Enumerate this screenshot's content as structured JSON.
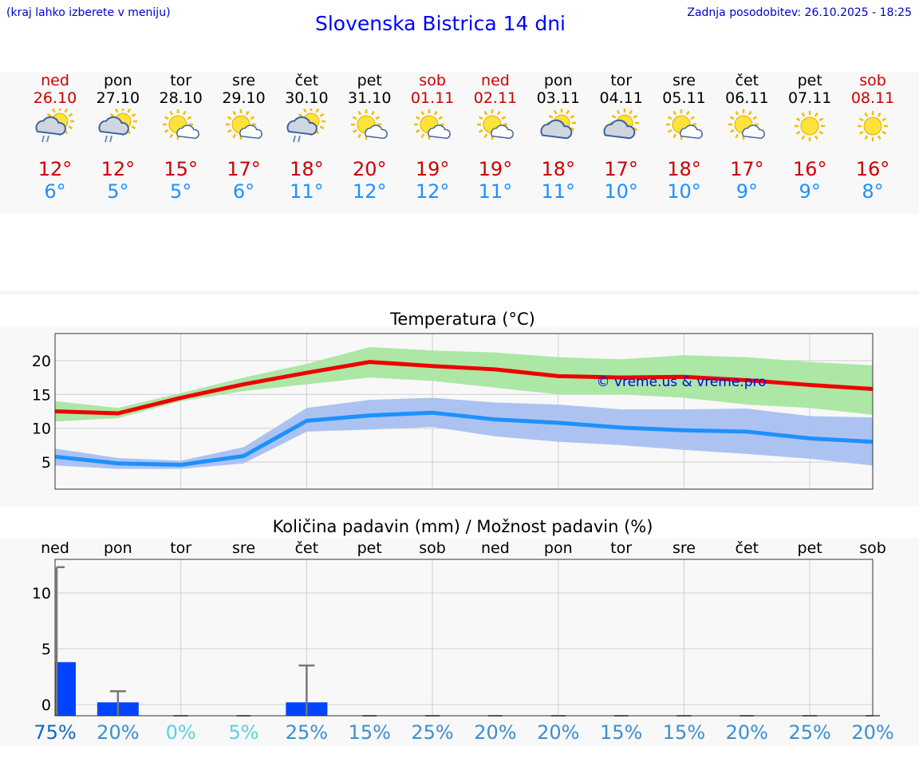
{
  "header": {
    "menu_hint": "(kraj lahko izberete v meniju)",
    "title": "Slovenska Bistrica 14 dni",
    "last_update": "Zadnja posodobitev: 26.10.2025 - 18:25"
  },
  "days": [
    {
      "name": "ned",
      "date": "26.10",
      "weekend": true,
      "icon": "partly-sunny-rain-icon",
      "tmax": "12°",
      "tmin": "6°"
    },
    {
      "name": "pon",
      "date": "27.10",
      "weekend": false,
      "icon": "partly-sunny-rain-icon",
      "tmax": "12°",
      "tmin": "5°"
    },
    {
      "name": "tor",
      "date": "28.10",
      "weekend": false,
      "icon": "sun-small-cloud-icon",
      "tmax": "15°",
      "tmin": "5°"
    },
    {
      "name": "sre",
      "date": "29.10",
      "weekend": false,
      "icon": "sun-small-cloud-icon",
      "tmax": "17°",
      "tmin": "6°"
    },
    {
      "name": "čet",
      "date": "30.10",
      "weekend": false,
      "icon": "partly-sunny-rain-icon",
      "tmax": "18°",
      "tmin": "11°"
    },
    {
      "name": "pet",
      "date": "31.10",
      "weekend": false,
      "icon": "sun-small-cloud-icon",
      "tmax": "20°",
      "tmin": "12°"
    },
    {
      "name": "sob",
      "date": "01.11",
      "weekend": true,
      "icon": "sun-small-cloud-icon",
      "tmax": "19°",
      "tmin": "12°"
    },
    {
      "name": "ned",
      "date": "02.11",
      "weekend": true,
      "icon": "sun-small-cloud-icon",
      "tmax": "19°",
      "tmin": "11°"
    },
    {
      "name": "pon",
      "date": "03.11",
      "weekend": false,
      "icon": "partly-cloudy-icon",
      "tmax": "18°",
      "tmin": "11°"
    },
    {
      "name": "tor",
      "date": "04.11",
      "weekend": false,
      "icon": "partly-cloudy-icon",
      "tmax": "17°",
      "tmin": "10°"
    },
    {
      "name": "sre",
      "date": "05.11",
      "weekend": false,
      "icon": "sun-small-cloud-icon",
      "tmax": "18°",
      "tmin": "10°"
    },
    {
      "name": "čet",
      "date": "06.11",
      "weekend": false,
      "icon": "sun-small-cloud-icon",
      "tmax": "17°",
      "tmin": "9°"
    },
    {
      "name": "pet",
      "date": "07.11",
      "weekend": false,
      "icon": "sun-icon",
      "tmax": "16°",
      "tmin": "9°"
    },
    {
      "name": "sob",
      "date": "08.11",
      "weekend": true,
      "icon": "sun-icon",
      "tmax": "16°",
      "tmin": "8°"
    }
  ],
  "colors": {
    "max_line": "#ee0000",
    "max_band": "#a8e6a0",
    "min_line": "#1e90ff",
    "min_band": "#a8c0f0",
    "bar": "#0044ff",
    "weekend_text": "#cc0000"
  },
  "chart_data": [
    {
      "type": "line",
      "title": "Temperatura (°C)",
      "ylim": [
        1,
        24
      ],
      "yticks": [
        "20",
        "15",
        "10",
        "5"
      ],
      "watermark": "© vreme.us & vreme.pro",
      "series": [
        {
          "values": [
            12.5,
            12.2,
            14.5,
            16.5,
            18.2,
            19.8,
            19.2,
            18.7,
            17.7,
            17.5,
            17.6,
            17.1,
            16.4,
            15.8
          ],
          "band_low": [
            11,
            11.5,
            14,
            15.5,
            16.5,
            17.5,
            17,
            16,
            15,
            15,
            14.5,
            13.5,
            13,
            12
          ],
          "band_high": [
            14,
            13,
            15.2,
            17.5,
            19.5,
            22,
            21.5,
            21.2,
            20.5,
            20.2,
            20.8,
            20.5,
            19.8,
            19.3
          ]
        },
        {
          "values": [
            5.8,
            4.8,
            4.6,
            5.9,
            11.1,
            11.9,
            12.3,
            11.3,
            10.8,
            10.1,
            9.7,
            9.5,
            8.5,
            8.0
          ],
          "band_low": [
            4.5,
            4.0,
            4.0,
            4.8,
            9.5,
            9.8,
            10.2,
            8.8,
            8.0,
            7.5,
            6.8,
            6.2,
            5.5,
            4.5
          ],
          "band_high": [
            7.0,
            5.6,
            5.2,
            7.2,
            13.0,
            14.2,
            14.5,
            13.8,
            13.5,
            12.8,
            12.8,
            12.9,
            11.8,
            11.6
          ]
        }
      ]
    },
    {
      "type": "bar",
      "title": "Količina padavin (mm) / Možnost padavin (%)",
      "categories": [
        "ned",
        "pon",
        "tor",
        "sre",
        "čet",
        "pet",
        "sob",
        "ned",
        "pon",
        "tor",
        "sre",
        "čet",
        "pet",
        "sob"
      ],
      "ylim": [
        -1,
        13
      ],
      "yticks": [
        "10",
        "5",
        "0"
      ],
      "values": [
        3.8,
        0.2,
        0,
        0,
        0.2,
        0,
        0,
        0,
        0,
        0,
        0,
        0,
        0,
        0
      ],
      "error_high": [
        12.3,
        1.2,
        0,
        0,
        3.5,
        0,
        0,
        0,
        0,
        0,
        0,
        0,
        0,
        0
      ],
      "probability": [
        "75%",
        "20%",
        "0%",
        "5%",
        "25%",
        "15%",
        "25%",
        "20%",
        "20%",
        "15%",
        "15%",
        "20%",
        "25%",
        "20%"
      ],
      "probability_colors": [
        "#1565c0",
        "#3a8fd0",
        "#5ad0e0",
        "#5ad0e0",
        "#3a8fd0",
        "#3a8fd0",
        "#3a8fd0",
        "#3a8fd0",
        "#3a8fd0",
        "#3a8fd0",
        "#3a8fd0",
        "#3a8fd0",
        "#3a8fd0",
        "#3a8fd0"
      ]
    }
  ]
}
